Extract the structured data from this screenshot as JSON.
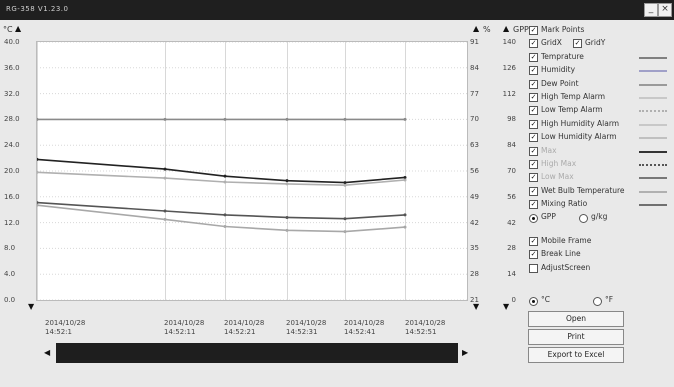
{
  "window": {
    "title": "RG-358 V1.23.0",
    "min_label": "_",
    "close_label": "×"
  },
  "axes": {
    "left_unit": "°C",
    "pct_unit": "%",
    "gpp_unit": "GPP",
    "left_ticks": [
      "40.0",
      "36.0",
      "32.0",
      "28.0",
      "24.0",
      "20.0",
      "16.0",
      "12.0",
      "8.0",
      "4.0",
      "0.0"
    ],
    "pct_ticks": [
      "91",
      "84",
      "77",
      "70",
      "63",
      "56",
      "49",
      "42",
      "35",
      "28",
      "21"
    ],
    "gpp_ticks": [
      "140",
      "126",
      "112",
      "98",
      "84",
      "70",
      "56",
      "42",
      "28",
      "14",
      "0"
    ],
    "x_labels": [
      "2014/10/28\n14:52:1",
      "2014/10/28\n14:52:11",
      "2014/10/28\n14:52:21",
      "2014/10/28\n14:52:31",
      "2014/10/28\n14:52:41",
      "2014/10/28\n14:52:51"
    ]
  },
  "legend": [
    {
      "label": "Mark Points",
      "checked": true,
      "color": ""
    },
    {
      "label": "GridX",
      "checked": true,
      "color": ""
    },
    {
      "label": "Temprature",
      "checked": true,
      "color": "#808080"
    },
    {
      "label": "Humidity",
      "checked": true,
      "color": "#a0a0c8"
    },
    {
      "label": "Dew Point",
      "checked": true,
      "color": "#9a9a9a"
    },
    {
      "label": "High Temp Alarm",
      "checked": true,
      "color": "#c8c8c8"
    },
    {
      "label": "Low Temp Alarm",
      "checked": true,
      "color": "#b0b0b0"
    },
    {
      "label": "High Humidity Alarm",
      "checked": true,
      "color": "#c8c8c8"
    },
    {
      "label": "Low Humidity Alarm",
      "checked": true,
      "color": "#c0c0c0"
    },
    {
      "label": "Max",
      "checked": true,
      "color": "#333333",
      "dim": true
    },
    {
      "label": "High Max",
      "checked": true,
      "color": "#555555",
      "dim": true
    },
    {
      "label": "Low Max",
      "checked": true,
      "color": "#777777",
      "dim": true
    },
    {
      "label": "Wet Bulb Temperature",
      "checked": true,
      "color": "#b0b0b0"
    },
    {
      "label": "Mixing Ratio",
      "checked": true,
      "color": "#707070"
    }
  ],
  "gridy": {
    "label": "GridY",
    "checked": true
  },
  "units": {
    "gpp": "GPP",
    "gkg": "g/kg",
    "gpp_selected": true
  },
  "options": [
    {
      "label": "Mobile Frame",
      "checked": true
    },
    {
      "label": "Break Line",
      "checked": true
    },
    {
      "label": "AdjustScreen",
      "checked": false
    }
  ],
  "temp_units": {
    "c": "°C",
    "f": "°F",
    "c_selected": true
  },
  "buttons": {
    "open": "Open",
    "print": "Print",
    "export": "Export to Excel"
  },
  "chart_data": {
    "type": "line",
    "x": [
      "14:52:01",
      "14:52:11",
      "14:52:21",
      "14:52:31",
      "14:52:41",
      "14:52:51"
    ],
    "ylim": [
      0,
      40
    ],
    "series": [
      {
        "name": "Temprature",
        "color": "#8a8a8a",
        "values": [
          28.0,
          28.0,
          28.0,
          28.0,
          28.0,
          28.0
        ]
      },
      {
        "name": "Max",
        "color": "#222222",
        "values": [
          21.8,
          20.3,
          19.2,
          18.5,
          18.2,
          19.0
        ]
      },
      {
        "name": "Humidity",
        "color": "#b0b0b0",
        "values": [
          19.8,
          18.9,
          18.3,
          18.0,
          17.8,
          18.6
        ]
      },
      {
        "name": "Mixing Ratio",
        "color": "#555555",
        "values": [
          15.1,
          13.8,
          13.2,
          12.8,
          12.6,
          13.2
        ]
      },
      {
        "name": "Dew Point",
        "color": "#a8a8a8",
        "values": [
          14.7,
          12.5,
          11.4,
          10.8,
          10.6,
          11.3
        ]
      }
    ]
  }
}
